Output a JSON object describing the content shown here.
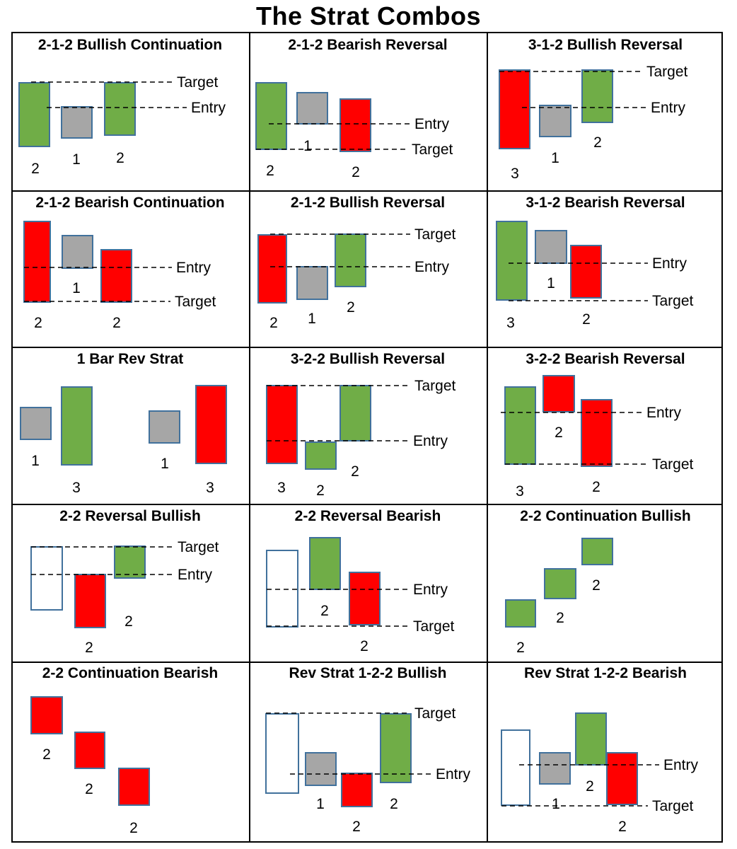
{
  "title": "The Strat Combos",
  "colors": {
    "green": "#70ad47",
    "red": "#ff0000",
    "gray": "#a6a6a6",
    "outline": "#41719c",
    "hollow": "#ffffff"
  },
  "panels": [
    {
      "title": "2-1-2 Bullish Continuation"
    },
    {
      "title": "2-1-2 Bearish Reversal"
    },
    {
      "title": "3-1-2 Bullish Reversal"
    },
    {
      "title": "2-1-2 Bearish Continuation"
    },
    {
      "title": "2-1-2 Bullish Reversal"
    },
    {
      "title": "3-1-2 Bearish Reversal"
    },
    {
      "title": "1 Bar Rev Strat"
    },
    {
      "title": "3-2-2 Bullish Reversal"
    },
    {
      "title": "3-2-2 Bearish Reversal"
    },
    {
      "title": "2-2 Reversal Bullish"
    },
    {
      "title": "2-2 Reversal Bearish"
    },
    {
      "title": "2-2 Continuation Bullish"
    },
    {
      "title": "2-2 Continuation Bearish"
    },
    {
      "title": "Rev Strat 1-2-2 Bullish"
    },
    {
      "title": "Rev Strat 1-2-2 Bearish"
    }
  ],
  "level_labels": {
    "target": "Target",
    "entry": "Entry"
  },
  "candle_labels": {
    "p0": [
      "2",
      "1",
      "2"
    ],
    "p1": [
      "2",
      "1",
      "2"
    ],
    "p2": [
      "3",
      "1",
      "2"
    ],
    "p3": [
      "2",
      "1",
      "2"
    ],
    "p4": [
      "2",
      "1",
      "2"
    ],
    "p5": [
      "3",
      "1",
      "2"
    ],
    "p6": [
      "1",
      "3",
      "1",
      "3"
    ],
    "p7": [
      "3",
      "2",
      "2"
    ],
    "p8": [
      "3",
      "2",
      "2"
    ],
    "p9": [
      "2",
      "2"
    ],
    "p10": [
      "2",
      "2"
    ],
    "p11": [
      "2",
      "2",
      "2"
    ],
    "p12": [
      "2",
      "2",
      "2"
    ],
    "p13": [
      "1",
      "2",
      "2"
    ],
    "p14": [
      "1",
      "2",
      "2"
    ]
  }
}
